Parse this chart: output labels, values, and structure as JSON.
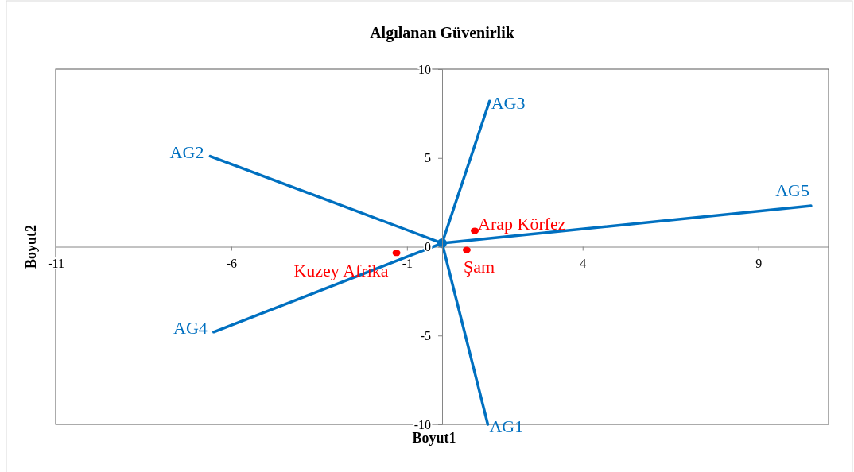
{
  "chart_data": {
    "type": "line",
    "title": "Algılanan Güvenirlik",
    "xlabel": "Boyut1",
    "ylabel": "Boyut2",
    "xlim": [
      -11,
      11
    ],
    "ylim": [
      -10,
      10
    ],
    "xticks": [
      -11,
      -6,
      -1,
      4,
      9
    ],
    "yticks": [
      -10,
      -5,
      0,
      5,
      10
    ],
    "grid": false,
    "marker": "none",
    "line_style": "solid",
    "series": [
      {
        "name": "AG1",
        "color": "#0070c0",
        "x": [
          0,
          1.3
        ],
        "values": [
          0.2,
          -10
        ]
      },
      {
        "name": "AG2",
        "color": "#0070c0",
        "x": [
          0,
          -6.6
        ],
        "values": [
          0.2,
          5.1
        ]
      },
      {
        "name": "AG3",
        "color": "#0070c0",
        "x": [
          0,
          1.35
        ],
        "values": [
          0.2,
          8.2
        ]
      },
      {
        "name": "AG4",
        "color": "#0070c0",
        "x": [
          0,
          -6.5
        ],
        "values": [
          0.2,
          -4.8
        ]
      },
      {
        "name": "AG5",
        "color": "#0070c0",
        "x": [
          0,
          10.5
        ],
        "values": [
          0.2,
          2.3
        ]
      },
      {
        "type": "scatter",
        "marker": "circle",
        "color": "#0070c0",
        "x": [
          0
        ],
        "values": [
          0.2
        ]
      },
      {
        "type": "scatter",
        "marker": "circle",
        "name": "Arap Körfez",
        "color": "#ff0000",
        "x": [
          0.93
        ],
        "values": [
          0.9
        ]
      },
      {
        "type": "scatter",
        "marker": "circle",
        "name": "Kuzey Afrika",
        "color": "#ff0000",
        "x": [
          -1.3
        ],
        "values": [
          -0.35
        ]
      },
      {
        "type": "scatter",
        "marker": "circle",
        "name": "Şam",
        "color": "#ff0000",
        "x": [
          0.7
        ],
        "values": [
          -0.18
        ]
      }
    ]
  }
}
